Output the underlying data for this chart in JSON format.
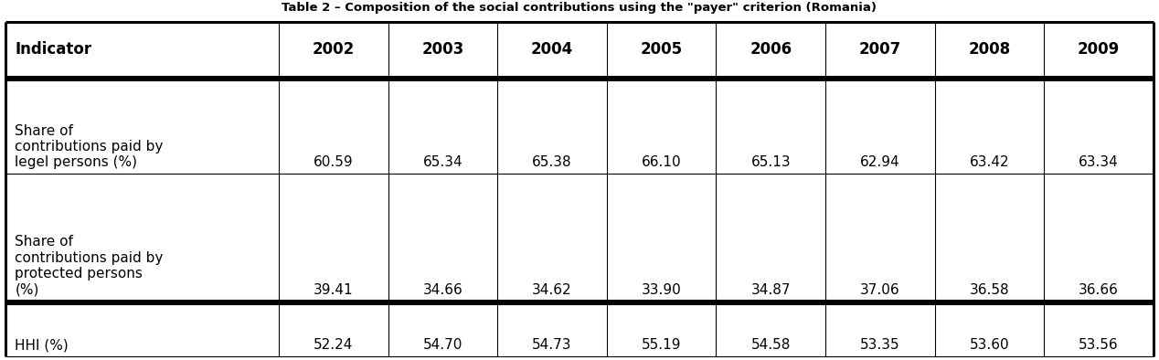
{
  "title": "Table 2 – Composition of the social contributions using the \"payer\" criterion (Romania)",
  "columns": [
    "Indicator",
    "2002",
    "2003",
    "2004",
    "2005",
    "2006",
    "2007",
    "2008",
    "2009"
  ],
  "rows": [
    {
      "label": "Share of\ncontributions paid by\nlegel persons (%)",
      "values": [
        "60.59",
        "65.34",
        "65.38",
        "66.10",
        "65.13",
        "62.94",
        "63.42",
        "63.34"
      ]
    },
    {
      "label": "Share of\ncontributions paid by\nprotected persons\n(%)",
      "values": [
        "39.41",
        "34.66",
        "34.62",
        "33.90",
        "34.87",
        "37.06",
        "36.58",
        "36.66"
      ]
    },
    {
      "label": "HHI (%)",
      "values": [
        "52.24",
        "54.70",
        "54.73",
        "55.19",
        "54.58",
        "53.35",
        "53.60",
        "53.56"
      ]
    }
  ],
  "col_widths": [
    2.5,
    1.0,
    1.0,
    1.0,
    1.0,
    1.0,
    1.0,
    1.0,
    1.0
  ],
  "background_color": "#ffffff",
  "font_size": 11,
  "header_font_size": 12,
  "title_fontsize": 9.5
}
